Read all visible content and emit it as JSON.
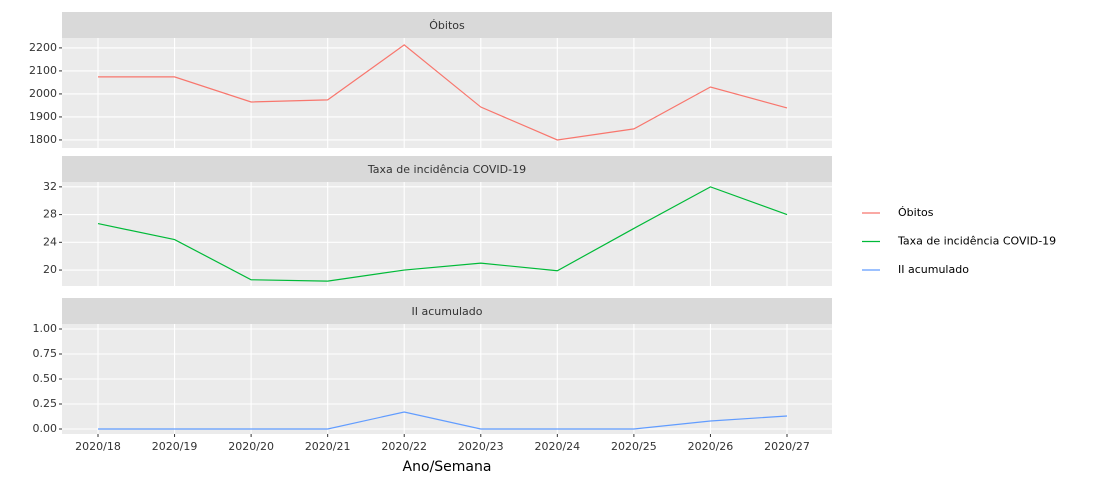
{
  "chart_data": {
    "type": "line",
    "xlabel": "Ano/Semana",
    "categories": [
      "2020/18",
      "2020/19",
      "2020/20",
      "2020/21",
      "2020/22",
      "2020/23",
      "2020/24",
      "2020/25",
      "2020/26",
      "2020/27"
    ],
    "grid": true,
    "legend": "right",
    "series": [
      {
        "name": "Óbitos",
        "color": "#F8766D",
        "values": [
          2074,
          2074,
          1965,
          1974,
          2213,
          1943,
          1800,
          1848,
          2030,
          1939
        ],
        "ylim": [
          1765,
          2243
        ],
        "yticks": [
          1800,
          1900,
          2000,
          2100,
          2200
        ]
      },
      {
        "name": "Taxa de incidência COVID-19",
        "color": "#00BA38",
        "values": [
          26.7,
          24.4,
          18.6,
          18.4,
          20.0,
          21.0,
          19.9,
          26.0,
          32.0,
          28.0
        ],
        "ylim": [
          17.7,
          32.7
        ],
        "yticks": [
          20,
          24,
          28,
          32
        ]
      },
      {
        "name": "II acumulado",
        "color": "#619CFF",
        "values": [
          0,
          0,
          0,
          0,
          0.17,
          0,
          0,
          0,
          0.08,
          0.13
        ],
        "ylim": [
          -0.05,
          1.05
        ],
        "yticks": [
          {
            "value": 0,
            "label": "0.00"
          },
          {
            "value": 0.25,
            "label": "0.25"
          },
          {
            "value": 0.5,
            "label": "0.50"
          },
          {
            "value": 0.75,
            "label": "0.75"
          },
          {
            "value": 1,
            "label": "1.00"
          }
        ]
      }
    ]
  }
}
